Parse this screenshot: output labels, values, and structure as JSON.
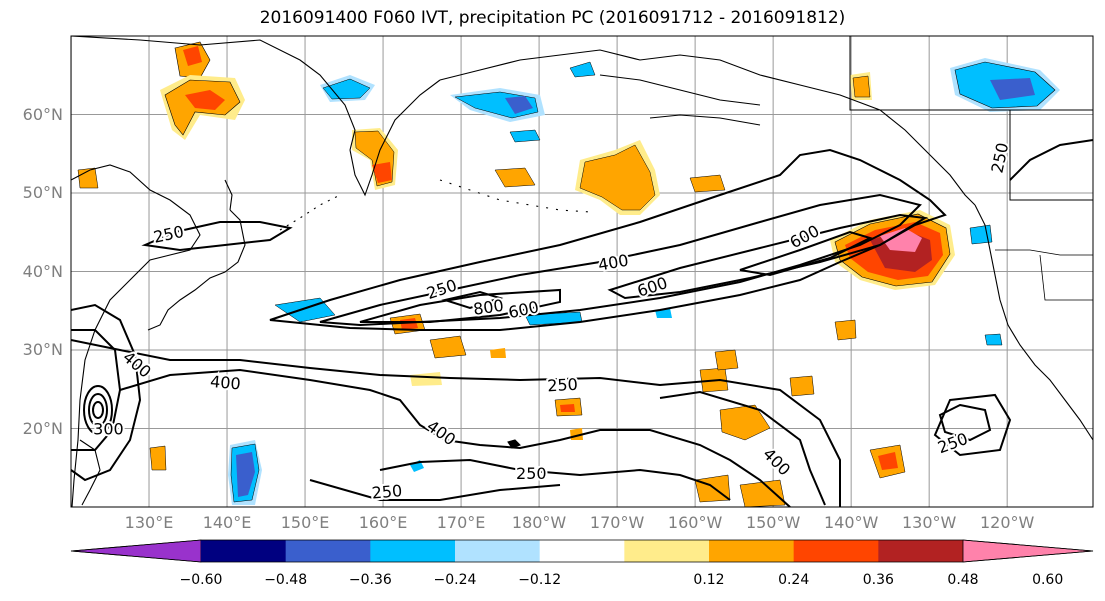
{
  "title": "2016091400 F060 IVT, precipitation PC (2016091712 - 2016091812)",
  "map": {
    "lon_range": [
      120,
      251
    ],
    "lat_range": [
      10,
      70
    ],
    "lat_ticks": [
      {
        "value": 60,
        "label": "60°N"
      },
      {
        "value": 50,
        "label": "50°N"
      },
      {
        "value": 40,
        "label": "40°N"
      },
      {
        "value": 30,
        "label": "30°N"
      },
      {
        "value": 20,
        "label": "20°N"
      }
    ],
    "lon_ticks": [
      {
        "value": 130,
        "label": "130°E"
      },
      {
        "value": 140,
        "label": "140°E"
      },
      {
        "value": 150,
        "label": "150°E"
      },
      {
        "value": 160,
        "label": "160°E"
      },
      {
        "value": 170,
        "label": "170°E"
      },
      {
        "value": 180,
        "label": "180°W"
      },
      {
        "value": 190,
        "label": "170°W"
      },
      {
        "value": 200,
        "label": "160°W"
      },
      {
        "value": 210,
        "label": "150°W"
      },
      {
        "value": 220,
        "label": "140°W"
      },
      {
        "value": 230,
        "label": "130°W"
      },
      {
        "value": 240,
        "label": "120°W"
      }
    ],
    "ivt_contour_labels": [
      {
        "text": "250",
        "lon": 132.5,
        "lat": 44.8,
        "rot": -12
      },
      {
        "text": "250",
        "lon": 167.5,
        "lat": 37.8,
        "rot": -18
      },
      {
        "text": "800",
        "lon": 173.5,
        "lat": 35.5,
        "rot": -8
      },
      {
        "text": "600",
        "lon": 178,
        "lat": 35.2,
        "rot": -12
      },
      {
        "text": "400",
        "lon": 189.5,
        "lat": 41.2,
        "rot": -10
      },
      {
        "text": "600",
        "lon": 194.5,
        "lat": 38.1,
        "rot": -18
      },
      {
        "text": "600",
        "lon": 214,
        "lat": 44.5,
        "rot": -28
      },
      {
        "text": "400",
        "lon": 128.5,
        "lat": 28.2,
        "rot": 40
      },
      {
        "text": "400",
        "lon": 139.8,
        "lat": 25.9,
        "rot": 5
      },
      {
        "text": "400",
        "lon": 167.5,
        "lat": 19.5,
        "rot": 35
      },
      {
        "text": "250",
        "lon": 183,
        "lat": 25.6,
        "rot": -3
      },
      {
        "text": "250",
        "lon": 179,
        "lat": 14.3,
        "rot": 0
      },
      {
        "text": "250",
        "lon": 160.5,
        "lat": 12.0,
        "rot": -5
      },
      {
        "text": "400",
        "lon": 210.5,
        "lat": 15.8,
        "rot": 45
      },
      {
        "text": "250",
        "lon": 233,
        "lat": 18.2,
        "rot": -20
      },
      {
        "text": "250",
        "lon": 239,
        "lat": 54.5,
        "rot": -78
      },
      {
        "text": "300",
        "lon": 124.8,
        "lat": 20.0,
        "rot": 0
      }
    ],
    "colors": {
      "neg_060": "#9932cc",
      "neg_048": "#000080",
      "neg_036": "#3a5fcd",
      "neg_024": "#00bfff",
      "neg_012": "#b0e2ff",
      "pos_012": "#ffec8b",
      "pos_024": "#ffa500",
      "pos_036": "#ff4500",
      "pos_048": "#b22222",
      "pos_060": "#ff82ab"
    }
  },
  "colorbar": {
    "colors": [
      "#9932cc",
      "#000080",
      "#3a5fcd",
      "#00bfff",
      "#b0e2ff",
      "#ffffff",
      "#ffec8b",
      "#ffa500",
      "#ff4500",
      "#b22222",
      "#ff82ab"
    ],
    "tick_labels": [
      "−0.60",
      "−0.48",
      "−0.36",
      "−0.24",
      "−0.12",
      "0.12",
      "0.24",
      "0.36",
      "0.48",
      "0.60"
    ]
  }
}
